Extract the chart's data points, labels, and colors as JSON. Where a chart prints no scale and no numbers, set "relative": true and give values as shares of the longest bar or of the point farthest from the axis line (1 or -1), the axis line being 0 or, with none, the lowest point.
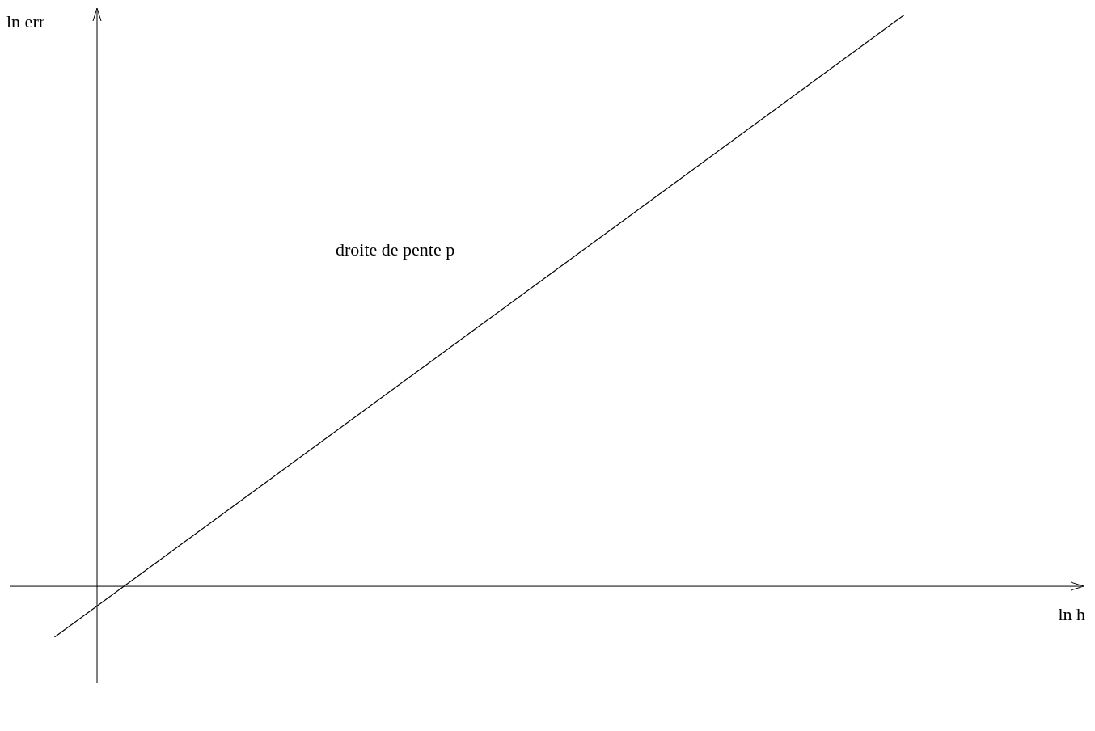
{
  "chart_data": {
    "type": "line",
    "relative": true,
    "xlabel": "ln h",
    "ylabel": "ln err",
    "annotations": [
      "droite de pente p"
    ],
    "categories": [
      null,
      null,
      null,
      null,
      null,
      null,
      null,
      null,
      null,
      null,
      null,
      null,
      null,
      null,
      null,
      null,
      null,
      null,
      null,
      null,
      null,
      null,
      null,
      null,
      null
    ],
    "series": [
      {
        "color": "#000000",
        "values": [
          null,
          -0.089,
          null,
          null,
          null,
          null,
          null,
          null,
          null,
          null,
          null,
          null,
          null,
          null,
          null,
          null,
          null,
          null,
          null,
          null,
          1,
          null,
          null,
          null,
          null
        ]
      }
    ],
    "marker": "none",
    "legend": false
  }
}
